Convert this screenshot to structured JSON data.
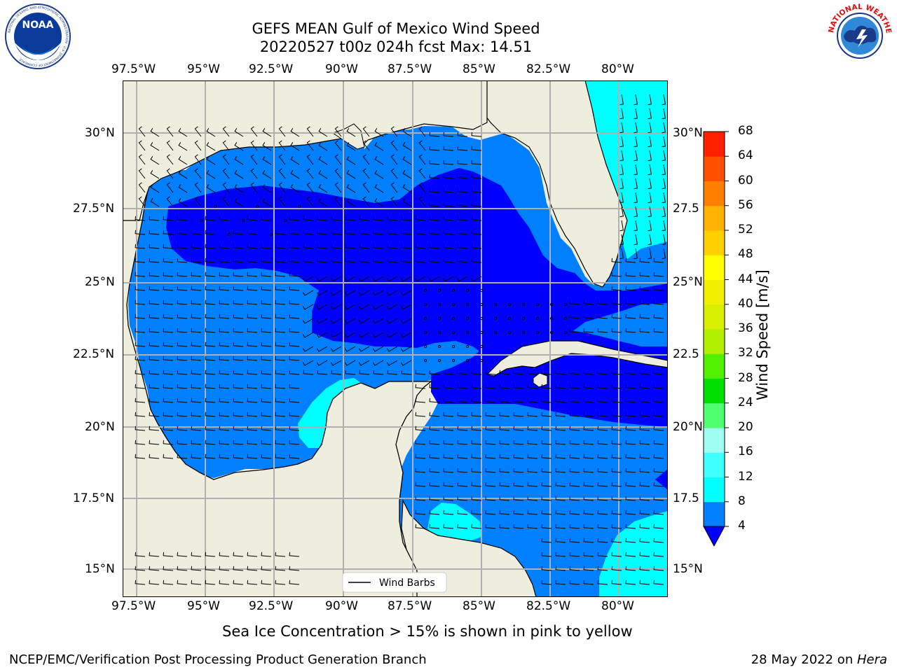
{
  "title_line1": "GEFS MEAN Gulf of Mexico Wind Speed",
  "title_line2": "20220527 t00z 024h fcst   Max: 14.51",
  "logos": {
    "left_text": "NOAA",
    "left_ring_text": "NATIONAL OCEANIC AND ATMOSPHERIC ADMINISTRATION · U.S. DEPARTMENT OF COMMERCE",
    "right_ring_text": "NATIONAL WEATHER SERVICE"
  },
  "lon_ticks": [
    "97.5°W",
    "95°W",
    "92.5°W",
    "90°W",
    "87.5°W",
    "85°W",
    "82.5°W",
    "80°W"
  ],
  "lat_ticks": [
    "30°N",
    "27.5°N",
    "25°N",
    "22.5°N",
    "20°N",
    "17.5°N",
    "15°N"
  ],
  "lat_ticks_right": [
    "30°N",
    "27.5",
    "25°N",
    "22.5",
    "20°N",
    "17.5",
    "15°N"
  ],
  "legend_label": "Wind Barbs",
  "colorbar": {
    "label": "Wind Speed [m/s]",
    "levels": [
      4,
      8,
      12,
      16,
      20,
      24,
      28,
      32,
      36,
      40,
      44,
      48,
      52,
      56,
      60,
      64,
      68
    ],
    "colors": [
      "#0000ff",
      "#0080ff",
      "#00ffff",
      "#40ffff",
      "#9ffff0",
      "#50ff70",
      "#00e000",
      "#50f000",
      "#b0f000",
      "#d8f000",
      "#f0f000",
      "#ffff00",
      "#ffd000",
      "#ffb000",
      "#ff8000",
      "#ff5000",
      "#ff2000",
      "#ff0000"
    ]
  },
  "ice_note": "Sea Ice Concentration > 15% is shown in pink to yellow",
  "footer_left": "NCEP/EMC/Verification Post Processing Product Generation Branch",
  "footer_right_prefix": "28 May 2022 on ",
  "footer_right_machine": "Hera",
  "colors": {
    "land": "#efedde",
    "speed_0_4": "#0000ff",
    "speed_4_8": "#0080ff",
    "speed_8_12": "#00ffff",
    "speed_12_16": "#40ffff",
    "grid": "#b0b0b0"
  }
}
